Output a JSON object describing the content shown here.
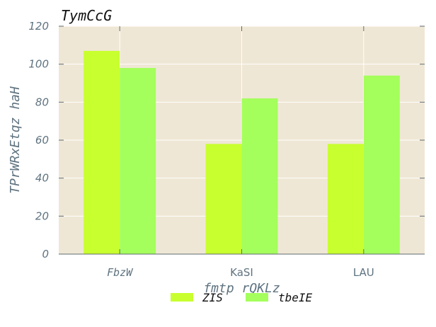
{
  "chart_data": {
    "type": "bar",
    "title": "TymCcG",
    "xlabel": "fmtp rQKLz",
    "ylabel": "TPrWRxEtqz haH",
    "categories": [
      "FbzW",
      "KaSI",
      "LAU"
    ],
    "series": [
      {
        "name": "ZIS",
        "values": [
          107,
          58,
          58
        ]
      },
      {
        "name": "tbeIE",
        "values": [
          98,
          82,
          94
        ]
      }
    ],
    "ylim": [
      0,
      120
    ],
    "yticks": [
      0,
      20,
      40,
      60,
      80,
      100,
      120
    ],
    "grid": true,
    "legend_position": "bottom-center"
  },
  "style": {
    "plot_bg": "#efe7d5",
    "grid_color": "#ffffff",
    "series_colors": [
      "#c8ff2e",
      "#a4ff5c"
    ],
    "axis_text_color": "#5f7380",
    "title_color": "#111111",
    "spine_color": "#5f6b73"
  }
}
